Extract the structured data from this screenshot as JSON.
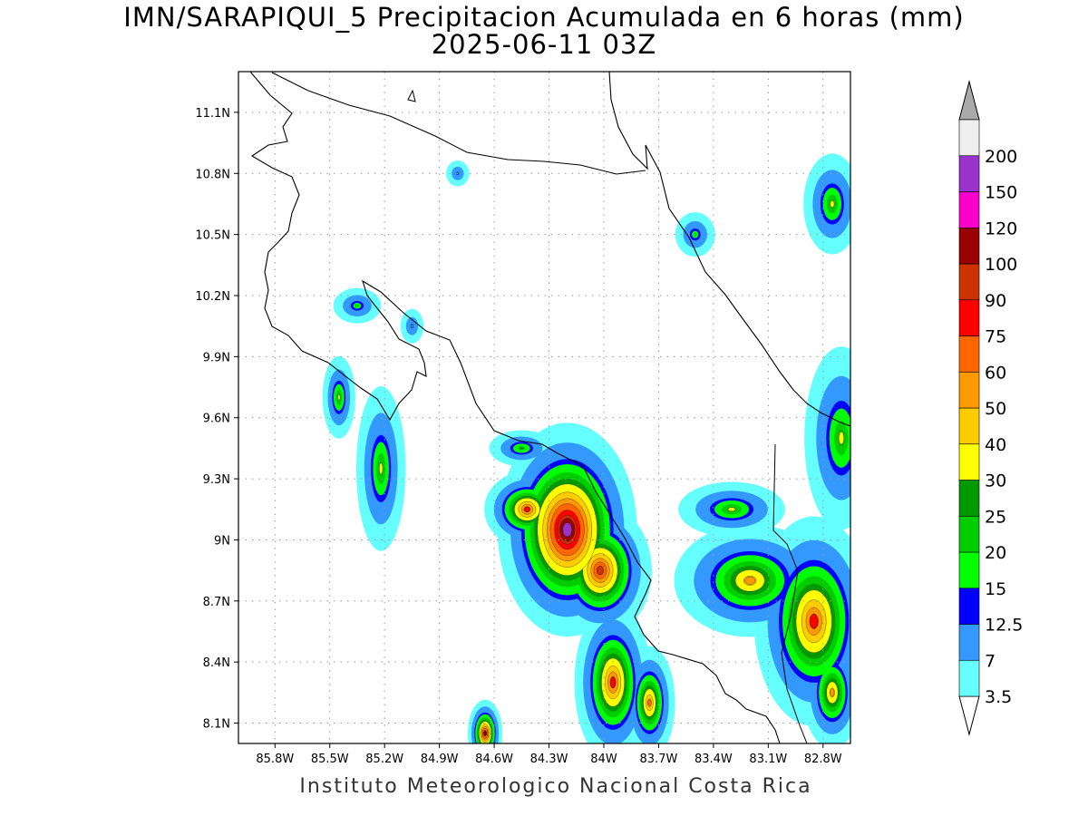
{
  "header": {
    "title": "IMN/SARAPIQUI_5 Precipitacion Acumulada en 6 horas (mm)",
    "subtitle": "2025-06-11 03Z"
  },
  "footer": {
    "credit": "Instituto Meteorologico Nacional Costa Rica"
  },
  "map": {
    "lon_range": [
      -86.0,
      -82.65
    ],
    "lat_range": [
      8.0,
      11.3
    ],
    "lon_ticks": [
      {
        "value": -85.8,
        "label": "85.8W"
      },
      {
        "value": -85.5,
        "label": "85.5W"
      },
      {
        "value": -85.2,
        "label": "85.2W"
      },
      {
        "value": -84.9,
        "label": "84.9W"
      },
      {
        "value": -84.6,
        "label": "84.6W"
      },
      {
        "value": -84.3,
        "label": "84.3W"
      },
      {
        "value": -84.0,
        "label": "84W"
      },
      {
        "value": -83.7,
        "label": "83.7W"
      },
      {
        "value": -83.4,
        "label": "83.4W"
      },
      {
        "value": -83.1,
        "label": "83.1W"
      },
      {
        "value": -82.8,
        "label": "82.8W"
      }
    ],
    "lat_ticks": [
      {
        "value": 11.1,
        "label": "11.1N"
      },
      {
        "value": 10.8,
        "label": "10.8N"
      },
      {
        "value": 10.5,
        "label": "10.5N"
      },
      {
        "value": 10.2,
        "label": "10.2N"
      },
      {
        "value": 9.9,
        "label": "9.9N"
      },
      {
        "value": 9.6,
        "label": "9.6N"
      },
      {
        "value": 9.3,
        "label": "9.3N"
      },
      {
        "value": 9.0,
        "label": "9N"
      },
      {
        "value": 8.7,
        "label": "8.7N"
      },
      {
        "value": 8.4,
        "label": "8.4N"
      },
      {
        "value": 8.1,
        "label": "8.1N"
      }
    ],
    "grid": true
  },
  "colorbar": {
    "levels": [
      "3.5",
      "7",
      "12.5",
      "15",
      "20",
      "25",
      "30",
      "40",
      "50",
      "60",
      "75",
      "90",
      "100",
      "120",
      "150",
      "200"
    ],
    "colors": [
      "#66ffff",
      "#3399ff",
      "#0000ff",
      "#00ff00",
      "#00cc00",
      "#009900",
      "#ffff00",
      "#ffcc00",
      "#ff9900",
      "#ff6600",
      "#ff0000",
      "#cc3300",
      "#990000",
      "#ff00cc",
      "#9933cc",
      "#eeeeee"
    ],
    "over_color": "#aaaaaa",
    "under_color": "#ffffff"
  },
  "precip_clusters": [
    {
      "lon": -84.2,
      "lat": 9.05,
      "peak": 150,
      "sx": 0.16,
      "sy": 0.22
    },
    {
      "lon": -84.02,
      "lat": 8.85,
      "peak": 90,
      "sx": 0.12,
      "sy": 0.14
    },
    {
      "lon": -84.42,
      "lat": 9.15,
      "peak": 75,
      "sx": 0.1,
      "sy": 0.08
    },
    {
      "lon": -83.95,
      "lat": 8.3,
      "peak": 75,
      "sx": 0.09,
      "sy": 0.17
    },
    {
      "lon": -83.75,
      "lat": 8.2,
      "peak": 60,
      "sx": 0.06,
      "sy": 0.12
    },
    {
      "lon": -84.65,
      "lat": 8.05,
      "peak": 100,
      "sx": 0.04,
      "sy": 0.07
    },
    {
      "lon": -83.2,
      "lat": 8.8,
      "peak": 50,
      "sx": 0.18,
      "sy": 0.12
    },
    {
      "lon": -82.85,
      "lat": 8.6,
      "peak": 75,
      "sx": 0.14,
      "sy": 0.22
    },
    {
      "lon": -82.75,
      "lat": 8.25,
      "peak": 50,
      "sx": 0.07,
      "sy": 0.12
    },
    {
      "lon": -83.3,
      "lat": 9.15,
      "peak": 30,
      "sx": 0.13,
      "sy": 0.06
    },
    {
      "lon": -82.7,
      "lat": 9.5,
      "peak": 30,
      "sx": 0.09,
      "sy": 0.2
    },
    {
      "lon": -82.75,
      "lat": 10.65,
      "peak": 30,
      "sx": 0.07,
      "sy": 0.11
    },
    {
      "lon": -85.22,
      "lat": 9.35,
      "peak": 30,
      "sx": 0.06,
      "sy": 0.18
    },
    {
      "lon": -85.45,
      "lat": 9.7,
      "peak": 30,
      "sx": 0.04,
      "sy": 0.09
    },
    {
      "lon": -83.5,
      "lat": 10.5,
      "peak": 20,
      "sx": 0.05,
      "sy": 0.05
    },
    {
      "lon": -84.45,
      "lat": 9.45,
      "peak": 25,
      "sx": 0.08,
      "sy": 0.04
    },
    {
      "lon": -85.35,
      "lat": 10.15,
      "peak": 20,
      "sx": 0.06,
      "sy": 0.04
    },
    {
      "lon": -84.8,
      "lat": 10.8,
      "peak": 15,
      "sx": 0.03,
      "sy": 0.03
    },
    {
      "lon": -85.05,
      "lat": 10.05,
      "peak": 15,
      "sx": 0.03,
      "sy": 0.04
    }
  ]
}
